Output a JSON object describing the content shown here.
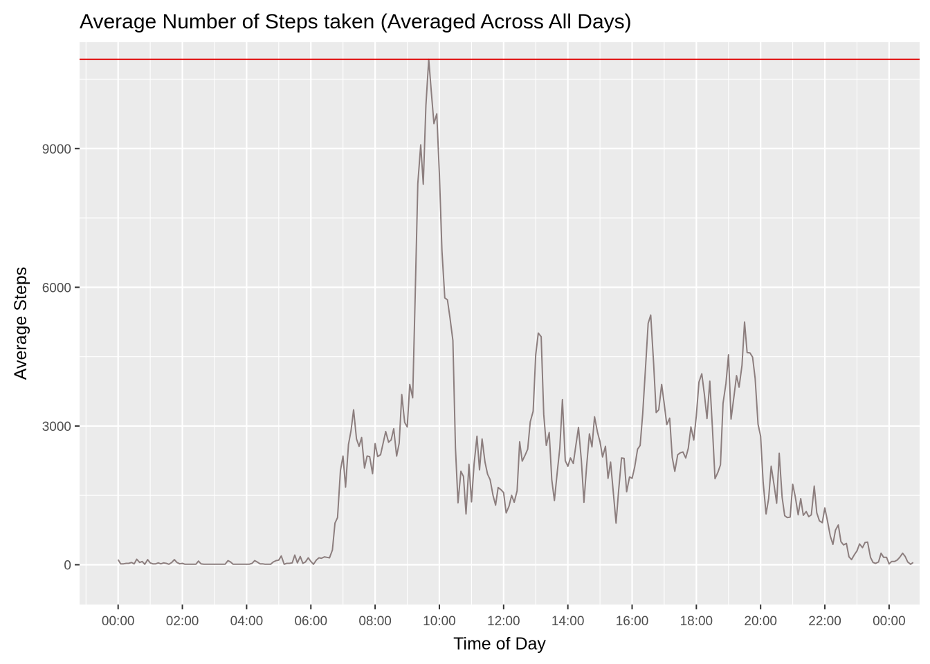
{
  "chart_data": {
    "type": "line",
    "title": "Average Number of Steps taken (Averaged Across All Days)",
    "xlabel": "Time of Day",
    "ylabel": "Average Steps",
    "x_unit": "hours",
    "xlim": [
      -1.2,
      24.95
    ],
    "ylim": [
      -860,
      11300
    ],
    "x_ticks": [
      {
        "value": 0,
        "label": "00:00"
      },
      {
        "value": 2,
        "label": "02:00"
      },
      {
        "value": 4,
        "label": "04:00"
      },
      {
        "value": 6,
        "label": "06:00"
      },
      {
        "value": 8,
        "label": "08:00"
      },
      {
        "value": 10,
        "label": "10:00"
      },
      {
        "value": 12,
        "label": "12:00"
      },
      {
        "value": 14,
        "label": "14:00"
      },
      {
        "value": 16,
        "label": "16:00"
      },
      {
        "value": 18,
        "label": "18:00"
      },
      {
        "value": 20,
        "label": "20:00"
      },
      {
        "value": 22,
        "label": "22:00"
      },
      {
        "value": 24,
        "label": "00:00"
      }
    ],
    "y_ticks": [
      {
        "value": 0,
        "label": "0"
      },
      {
        "value": 3000,
        "label": "3000"
      },
      {
        "value": 6000,
        "label": "6000"
      },
      {
        "value": 9000,
        "label": "9000"
      }
    ],
    "grid": true,
    "reference_line": {
      "type": "hline",
      "y": 10930,
      "color": "#e00000"
    },
    "series": [
      {
        "color": "#8c7e7e",
        "points": [
          [
            0.0,
            110
          ],
          [
            0.08,
            20
          ],
          [
            0.17,
            20
          ],
          [
            0.25,
            30
          ],
          [
            0.33,
            30
          ],
          [
            0.42,
            50
          ],
          [
            0.5,
            20
          ],
          [
            0.58,
            120
          ],
          [
            0.67,
            50
          ],
          [
            0.75,
            70
          ],
          [
            0.83,
            10
          ],
          [
            0.92,
            110
          ],
          [
            1.0,
            40
          ],
          [
            1.08,
            20
          ],
          [
            1.17,
            20
          ],
          [
            1.25,
            40
          ],
          [
            1.33,
            20
          ],
          [
            1.42,
            40
          ],
          [
            1.5,
            30
          ],
          [
            1.58,
            10
          ],
          [
            1.67,
            50
          ],
          [
            1.75,
            110
          ],
          [
            1.83,
            50
          ],
          [
            1.92,
            20
          ],
          [
            2.0,
            30
          ],
          [
            2.08,
            10
          ],
          [
            2.17,
            10
          ],
          [
            2.25,
            10
          ],
          [
            2.33,
            10
          ],
          [
            2.42,
            10
          ],
          [
            2.5,
            80
          ],
          [
            2.58,
            20
          ],
          [
            2.67,
            10
          ],
          [
            2.75,
            10
          ],
          [
            2.83,
            10
          ],
          [
            2.92,
            10
          ],
          [
            3.0,
            10
          ],
          [
            3.08,
            10
          ],
          [
            3.17,
            10
          ],
          [
            3.25,
            10
          ],
          [
            3.33,
            10
          ],
          [
            3.42,
            90
          ],
          [
            3.5,
            60
          ],
          [
            3.58,
            10
          ],
          [
            3.67,
            10
          ],
          [
            3.75,
            10
          ],
          [
            3.83,
            10
          ],
          [
            3.92,
            10
          ],
          [
            4.0,
            10
          ],
          [
            4.08,
            10
          ],
          [
            4.17,
            30
          ],
          [
            4.25,
            90
          ],
          [
            4.33,
            60
          ],
          [
            4.42,
            20
          ],
          [
            4.5,
            20
          ],
          [
            4.58,
            10
          ],
          [
            4.67,
            10
          ],
          [
            4.75,
            10
          ],
          [
            4.83,
            60
          ],
          [
            4.92,
            90
          ],
          [
            5.0,
            100
          ],
          [
            5.08,
            190
          ],
          [
            5.17,
            10
          ],
          [
            5.25,
            30
          ],
          [
            5.33,
            30
          ],
          [
            5.42,
            40
          ],
          [
            5.5,
            210
          ],
          [
            5.58,
            40
          ],
          [
            5.67,
            180
          ],
          [
            5.75,
            30
          ],
          [
            5.83,
            60
          ],
          [
            5.92,
            150
          ],
          [
            6.0,
            70
          ],
          [
            6.08,
            10
          ],
          [
            6.17,
            100
          ],
          [
            6.25,
            150
          ],
          [
            6.33,
            140
          ],
          [
            6.42,
            170
          ],
          [
            6.5,
            160
          ],
          [
            6.58,
            150
          ],
          [
            6.67,
            320
          ],
          [
            6.75,
            900
          ],
          [
            6.83,
            1020
          ],
          [
            6.92,
            2040
          ],
          [
            7.0,
            2350
          ],
          [
            7.08,
            1680
          ],
          [
            7.17,
            2600
          ],
          [
            7.25,
            2900
          ],
          [
            7.33,
            3350
          ],
          [
            7.42,
            2720
          ],
          [
            7.5,
            2560
          ],
          [
            7.58,
            2750
          ],
          [
            7.67,
            2090
          ],
          [
            7.75,
            2350
          ],
          [
            7.83,
            2340
          ],
          [
            7.92,
            1970
          ],
          [
            8.0,
            2620
          ],
          [
            8.08,
            2340
          ],
          [
            8.17,
            2380
          ],
          [
            8.25,
            2630
          ],
          [
            8.33,
            2880
          ],
          [
            8.42,
            2650
          ],
          [
            8.5,
            2700
          ],
          [
            8.58,
            2940
          ],
          [
            8.67,
            2350
          ],
          [
            8.75,
            2630
          ],
          [
            8.83,
            3680
          ],
          [
            8.92,
            3080
          ],
          [
            9.0,
            2980
          ],
          [
            9.08,
            3900
          ],
          [
            9.17,
            3610
          ],
          [
            9.25,
            5870
          ],
          [
            9.33,
            8240
          ],
          [
            9.42,
            9080
          ],
          [
            9.5,
            8230
          ],
          [
            9.58,
            9930
          ],
          [
            9.67,
            10930
          ],
          [
            9.75,
            10230
          ],
          [
            9.83,
            9540
          ],
          [
            9.92,
            9750
          ],
          [
            10.0,
            8450
          ],
          [
            10.08,
            6790
          ],
          [
            10.17,
            5770
          ],
          [
            10.25,
            5730
          ],
          [
            10.33,
            5340
          ],
          [
            10.42,
            4850
          ],
          [
            10.5,
            2530
          ],
          [
            10.58,
            1340
          ],
          [
            10.67,
            2020
          ],
          [
            10.75,
            1910
          ],
          [
            10.83,
            1100
          ],
          [
            10.92,
            2170
          ],
          [
            11.0,
            1360
          ],
          [
            11.08,
            2170
          ],
          [
            11.17,
            2780
          ],
          [
            11.25,
            2050
          ],
          [
            11.33,
            2720
          ],
          [
            11.42,
            2220
          ],
          [
            11.5,
            1960
          ],
          [
            11.58,
            1840
          ],
          [
            11.67,
            1500
          ],
          [
            11.75,
            1290
          ],
          [
            11.83,
            1670
          ],
          [
            11.92,
            1620
          ],
          [
            12.0,
            1560
          ],
          [
            12.08,
            1120
          ],
          [
            12.17,
            1270
          ],
          [
            12.25,
            1500
          ],
          [
            12.33,
            1350
          ],
          [
            12.42,
            1600
          ],
          [
            12.5,
            2660
          ],
          [
            12.58,
            2240
          ],
          [
            12.67,
            2370
          ],
          [
            12.75,
            2500
          ],
          [
            12.83,
            3090
          ],
          [
            12.92,
            3320
          ],
          [
            13.0,
            4540
          ],
          [
            13.08,
            5010
          ],
          [
            13.17,
            4930
          ],
          [
            13.25,
            3250
          ],
          [
            13.33,
            2580
          ],
          [
            13.42,
            2860
          ],
          [
            13.5,
            1840
          ],
          [
            13.58,
            1390
          ],
          [
            13.67,
            2000
          ],
          [
            13.75,
            2520
          ],
          [
            13.83,
            3570
          ],
          [
            13.92,
            2250
          ],
          [
            14.0,
            2130
          ],
          [
            14.08,
            2310
          ],
          [
            14.17,
            2190
          ],
          [
            14.25,
            2590
          ],
          [
            14.33,
            2970
          ],
          [
            14.42,
            2250
          ],
          [
            14.5,
            1350
          ],
          [
            14.58,
            2100
          ],
          [
            14.67,
            2830
          ],
          [
            14.75,
            2550
          ],
          [
            14.83,
            3200
          ],
          [
            14.92,
            2870
          ],
          [
            15.0,
            2660
          ],
          [
            15.08,
            2330
          ],
          [
            15.17,
            2560
          ],
          [
            15.25,
            1870
          ],
          [
            15.33,
            2220
          ],
          [
            15.42,
            1520
          ],
          [
            15.5,
            900
          ],
          [
            15.58,
            1600
          ],
          [
            15.67,
            2310
          ],
          [
            15.75,
            2300
          ],
          [
            15.83,
            1580
          ],
          [
            15.92,
            1900
          ],
          [
            16.0,
            1870
          ],
          [
            16.08,
            2110
          ],
          [
            16.17,
            2500
          ],
          [
            16.25,
            2580
          ],
          [
            16.33,
            3260
          ],
          [
            16.42,
            4290
          ],
          [
            16.5,
            5220
          ],
          [
            16.58,
            5400
          ],
          [
            16.67,
            4350
          ],
          [
            16.75,
            3290
          ],
          [
            16.83,
            3350
          ],
          [
            16.92,
            3900
          ],
          [
            17.0,
            3480
          ],
          [
            17.08,
            3030
          ],
          [
            17.17,
            3170
          ],
          [
            17.25,
            2320
          ],
          [
            17.33,
            2020
          ],
          [
            17.42,
            2380
          ],
          [
            17.5,
            2420
          ],
          [
            17.58,
            2440
          ],
          [
            17.67,
            2310
          ],
          [
            17.75,
            2520
          ],
          [
            17.83,
            2980
          ],
          [
            17.92,
            2700
          ],
          [
            18.0,
            3220
          ],
          [
            18.08,
            3950
          ],
          [
            18.17,
            4130
          ],
          [
            18.25,
            3680
          ],
          [
            18.33,
            3160
          ],
          [
            18.42,
            3970
          ],
          [
            18.5,
            2950
          ],
          [
            18.58,
            1860
          ],
          [
            18.67,
            2000
          ],
          [
            18.75,
            2160
          ],
          [
            18.83,
            3490
          ],
          [
            18.92,
            3920
          ],
          [
            19.0,
            4540
          ],
          [
            19.08,
            3150
          ],
          [
            19.17,
            3640
          ],
          [
            19.25,
            4090
          ],
          [
            19.33,
            3840
          ],
          [
            19.42,
            4310
          ],
          [
            19.5,
            5250
          ],
          [
            19.58,
            4590
          ],
          [
            19.67,
            4580
          ],
          [
            19.75,
            4490
          ],
          [
            19.83,
            4030
          ],
          [
            19.92,
            3040
          ],
          [
            20.0,
            2780
          ],
          [
            20.08,
            1780
          ],
          [
            20.17,
            1100
          ],
          [
            20.25,
            1430
          ],
          [
            20.33,
            2130
          ],
          [
            20.42,
            1720
          ],
          [
            20.5,
            1330
          ],
          [
            20.58,
            2410
          ],
          [
            20.67,
            1460
          ],
          [
            20.75,
            1060
          ],
          [
            20.83,
            1020
          ],
          [
            20.92,
            1030
          ],
          [
            21.0,
            1740
          ],
          [
            21.08,
            1470
          ],
          [
            21.17,
            1080
          ],
          [
            21.25,
            1430
          ],
          [
            21.33,
            1070
          ],
          [
            21.42,
            1150
          ],
          [
            21.5,
            1040
          ],
          [
            21.58,
            1080
          ],
          [
            21.67,
            1700
          ],
          [
            21.75,
            1120
          ],
          [
            21.83,
            950
          ],
          [
            21.92,
            910
          ],
          [
            22.0,
            1230
          ],
          [
            22.08,
            950
          ],
          [
            22.17,
            620
          ],
          [
            22.25,
            440
          ],
          [
            22.33,
            750
          ],
          [
            22.42,
            860
          ],
          [
            22.5,
            500
          ],
          [
            22.58,
            430
          ],
          [
            22.67,
            460
          ],
          [
            22.75,
            170
          ],
          [
            22.83,
            110
          ],
          [
            22.92,
            220
          ],
          [
            23.0,
            300
          ],
          [
            23.08,
            450
          ],
          [
            23.17,
            370
          ],
          [
            23.25,
            480
          ],
          [
            23.33,
            490
          ],
          [
            23.42,
            160
          ],
          [
            23.5,
            50
          ],
          [
            23.58,
            30
          ],
          [
            23.67,
            60
          ],
          [
            23.75,
            250
          ],
          [
            23.83,
            160
          ],
          [
            23.92,
            160
          ],
          [
            24.0,
            20
          ],
          [
            24.08,
            70
          ],
          [
            24.17,
            70
          ],
          [
            24.25,
            100
          ],
          [
            24.33,
            160
          ],
          [
            24.42,
            250
          ],
          [
            24.5,
            180
          ],
          [
            24.58,
            60
          ],
          [
            24.67,
            10
          ],
          [
            24.75,
            50
          ]
        ]
      }
    ]
  }
}
